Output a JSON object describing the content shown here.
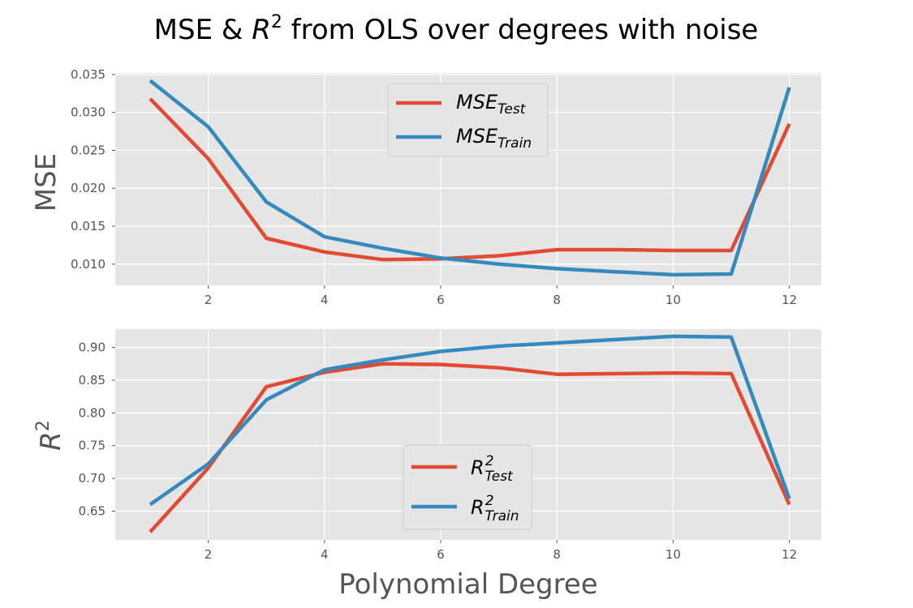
{
  "figure": {
    "title_prefix": "MSE & ",
    "title_var": "R",
    "title_sup": "2",
    "title_suffix": " from OLS over degrees with noise",
    "xlabel": "Polynomial Degree"
  },
  "chart_data": [
    {
      "type": "line",
      "title": "",
      "ylabel": "MSE",
      "xlabel": "",
      "xlim": [
        0.4,
        12.55
      ],
      "ylim": [
        0.0072,
        0.0352
      ],
      "xticks": [
        2,
        4,
        6,
        8,
        10,
        12
      ],
      "xtick_labels": [
        "2",
        "4",
        "6",
        "8",
        "10",
        "12"
      ],
      "yticks": [
        0.01,
        0.015,
        0.02,
        0.025,
        0.03,
        0.035
      ],
      "ytick_labels": [
        "0.010",
        "0.015",
        "0.020",
        "0.025",
        "0.030",
        "0.035"
      ],
      "grid": true,
      "legend_position": "upper-center",
      "x": [
        1,
        2,
        3,
        4,
        5,
        6,
        7,
        8,
        9,
        10,
        11,
        12
      ],
      "series": [
        {
          "name": "MSE_Test",
          "label_base": "MSE",
          "label_sub": "Test",
          "color": "#E24A33",
          "values": [
            0.0318,
            0.0239,
            0.0134,
            0.0116,
            0.0106,
            0.0107,
            0.0111,
            0.0119,
            0.0119,
            0.0118,
            0.0118,
            0.0285
          ]
        },
        {
          "name": "MSE_Train",
          "label_base": "MSE",
          "label_sub": "Train",
          "color": "#348ABD",
          "values": [
            0.0342,
            0.0281,
            0.0182,
            0.0136,
            0.0121,
            0.0108,
            0.01,
            0.0094,
            0.009,
            0.0086,
            0.0087,
            0.0333
          ]
        }
      ]
    },
    {
      "type": "line",
      "title": "",
      "ylabel": "R",
      "ylabel_sup": "2",
      "xlabel": "Polynomial Degree",
      "xlim": [
        0.4,
        12.55
      ],
      "ylim": [
        0.606,
        0.928
      ],
      "xticks": [
        2,
        4,
        6,
        8,
        10,
        12
      ],
      "xtick_labels": [
        "2",
        "4",
        "6",
        "8",
        "10",
        "12"
      ],
      "yticks": [
        0.65,
        0.7,
        0.75,
        0.8,
        0.85,
        0.9
      ],
      "ytick_labels": [
        "0.65",
        "0.70",
        "0.75",
        "0.80",
        "0.85",
        "0.90"
      ],
      "grid": true,
      "legend_position": "lower-center",
      "x": [
        1,
        2,
        3,
        4,
        5,
        6,
        7,
        8,
        9,
        10,
        11,
        12
      ],
      "series": [
        {
          "name": "R2_Test",
          "label_base": "R",
          "label_sup": "2",
          "label_sub": "Test",
          "color": "#E24A33",
          "values": [
            0.618,
            0.716,
            0.84,
            0.862,
            0.875,
            0.874,
            0.869,
            0.859,
            0.86,
            0.861,
            0.86,
            0.66
          ]
        },
        {
          "name": "R2_Train",
          "label_base": "R",
          "label_sup": "2",
          "label_sub": "Train",
          "color": "#348ABD",
          "values": [
            0.66,
            0.722,
            0.82,
            0.866,
            0.881,
            0.894,
            0.902,
            0.907,
            0.912,
            0.917,
            0.916,
            0.669
          ]
        }
      ]
    }
  ]
}
